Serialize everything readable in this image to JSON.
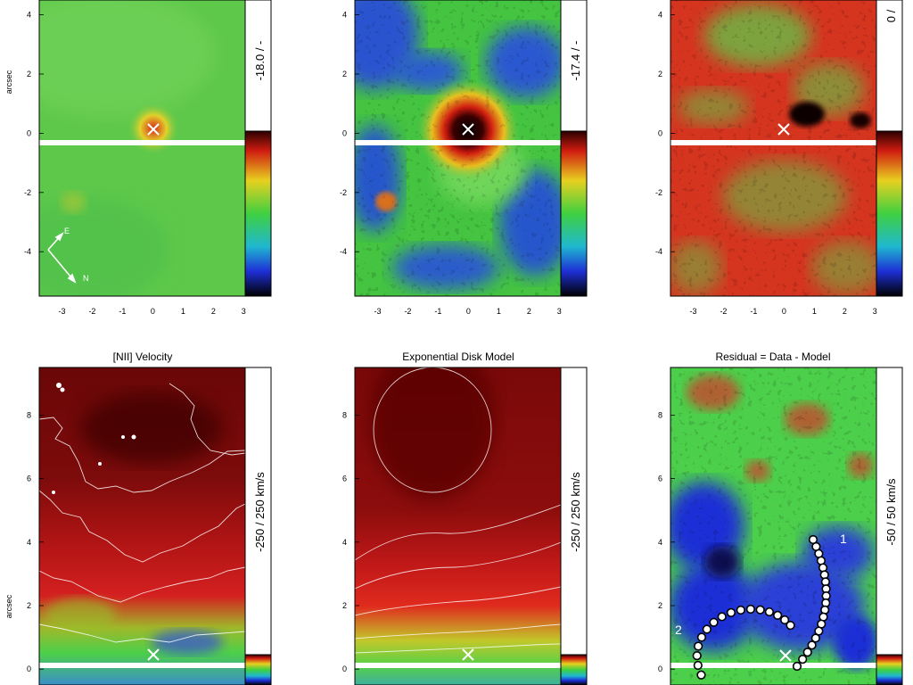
{
  "chart_data": [
    {
      "type": "heatmap",
      "row": "top",
      "title": "",
      "ylabel": "arcsec",
      "xticks": [
        "-3",
        "-2",
        "-1",
        "0",
        "1",
        "2",
        "3"
      ],
      "yticks": [
        "4",
        "2",
        "0",
        "-2",
        "-4"
      ],
      "ylim": [
        -5.5,
        4.5
      ],
      "colorbar_label": "-18.0  /  -",
      "colormap": "rainbow-black-to-red",
      "marker": {
        "x": 0,
        "y": 0,
        "symbol": "×"
      },
      "compass": {
        "e_label": "E",
        "n_label": "N"
      }
    },
    {
      "type": "heatmap",
      "row": "top",
      "title": "",
      "ylabel": "",
      "xticks": [
        "-3",
        "-2",
        "-1",
        "0",
        "1",
        "2",
        "3"
      ],
      "yticks": [
        "4",
        "2",
        "0",
        "-2",
        "-4"
      ],
      "ylim": [
        -5.5,
        4.5
      ],
      "colorbar_label": "-17.4  /  -",
      "colormap": "rainbow-black-to-red",
      "marker": {
        "x": 0,
        "y": 0,
        "symbol": "×"
      }
    },
    {
      "type": "heatmap",
      "row": "top",
      "title": "",
      "ylabel": "",
      "xticks": [
        "-3",
        "-2",
        "-1",
        "0",
        "1",
        "2",
        "3"
      ],
      "yticks": [
        "4",
        "2",
        "0",
        "-2",
        "-4"
      ],
      "ylim": [
        -5.5,
        4.5
      ],
      "colorbar_label": "0  /  ",
      "colormap": "rainbow-black-to-red",
      "marker": {
        "x": 0,
        "y": 0,
        "symbol": "×"
      }
    },
    {
      "type": "heatmap",
      "row": "bottom",
      "title": "[NII] Velocity",
      "ylabel": "arcsec",
      "xticks": [],
      "yticks": [
        "8",
        "6",
        "4",
        "2",
        "0"
      ],
      "ylim": [
        -0.5,
        9.5
      ],
      "colorbar_label": "-250  /  250   km/s",
      "colormap": "rainbow-black-to-red",
      "marker": {
        "x": 0,
        "y": 0,
        "symbol": "×"
      }
    },
    {
      "type": "heatmap",
      "row": "bottom",
      "title": "Exponential Disk Model",
      "ylabel": "",
      "xticks": [],
      "yticks": [
        "8",
        "6",
        "4",
        "2",
        "0"
      ],
      "ylim": [
        -0.5,
        9.5
      ],
      "colorbar_label": "-250  /  250   km/s",
      "colormap": "rainbow-black-to-red",
      "marker": {
        "x": 0,
        "y": 0,
        "symbol": "×"
      }
    },
    {
      "type": "heatmap",
      "row": "bottom",
      "title": "Residual = Data - Model",
      "ylabel": "",
      "xticks": [],
      "yticks": [
        "8",
        "6",
        "4",
        "2",
        "0"
      ],
      "ylim": [
        -0.5,
        9.5
      ],
      "colorbar_label": "-50  /  50   km/s",
      "colormap": "rainbow-black-to-red",
      "marker": {
        "x": 0,
        "y": 0,
        "symbol": "×"
      },
      "spiral_labels": [
        "1",
        "2"
      ]
    }
  ],
  "colors": {
    "black": "#000000",
    "blue": "#1e2fd6",
    "green": "#4fd04a",
    "red": "#d92a1a",
    "darkred": "#5a0606",
    "white": "#ffffff"
  }
}
